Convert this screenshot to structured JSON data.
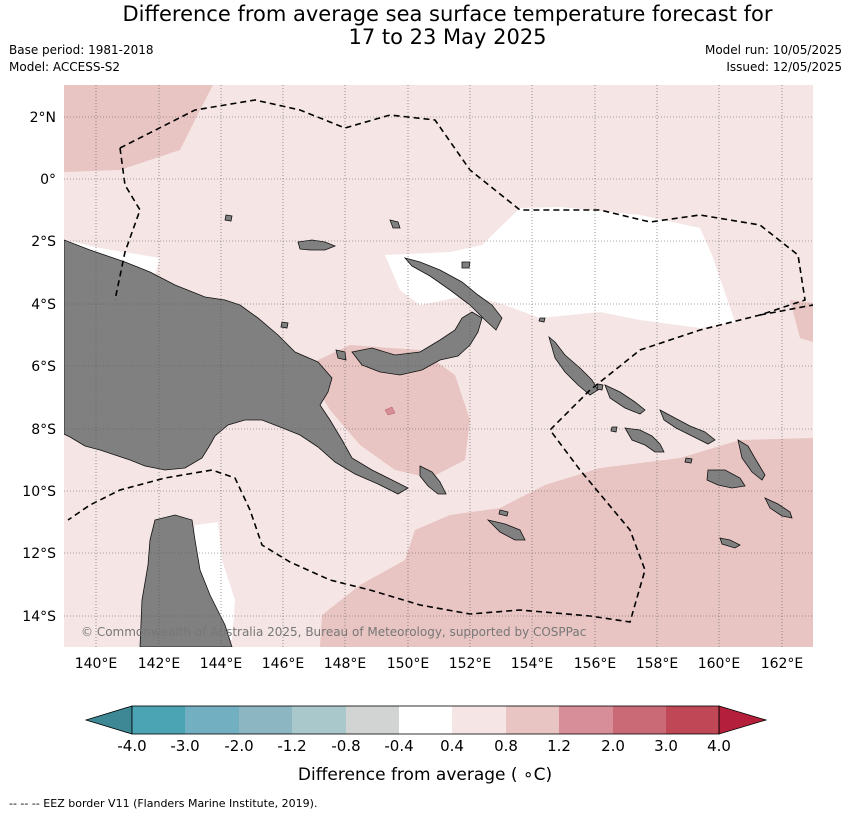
{
  "header": {
    "title_line1": "Difference from average sea surface temperature forecast for",
    "title_line2": "17 to 23 May 2025",
    "base_period": "Base period: 1981-2018",
    "model": "Model: ACCESS-S2",
    "model_run": "Model run: 10/05/2025",
    "issued": "Issued: 12/05/2025"
  },
  "map": {
    "lat_labels": [
      "2°N",
      "0°",
      "2°S",
      "4°S",
      "6°S",
      "8°S",
      "10°S",
      "12°S",
      "14°S"
    ],
    "lon_labels": [
      "140°E",
      "142°E",
      "144°E",
      "146°E",
      "148°E",
      "150°E",
      "152°E",
      "154°E",
      "156°E",
      "158°E",
      "160°E",
      "162°E"
    ],
    "copyright": "© Commonwealth of Australia 2025, Bureau of Meteorology, supported by COSPPac",
    "land_color": "#808080",
    "colors": {
      "c_0_4_0_8": "#f5e6e5",
      "c_0_8_1_2": "#e8c5c2"
    }
  },
  "colorbar": {
    "ticks": [
      "-4.0",
      "-3.0",
      "-2.0",
      "-1.2",
      "-0.8",
      "-0.4",
      "0.4",
      "0.8",
      "1.2",
      "2.0",
      "3.0",
      "4.0"
    ],
    "colors": [
      "#3e8896",
      "#4ba4b4",
      "#72afc0",
      "#8cb6c2",
      "#a9c8cc",
      "#d2d4d4",
      "#ffffff",
      "#f5e6e5",
      "#e8c5c2",
      "#d88e98",
      "#cb6a77",
      "#bf4756",
      "#b41f3c"
    ],
    "label": "Difference from average ( ∘C)"
  },
  "footnote": "--  --  -- EEZ border V11 (Flanders Marine Institute, 2019)."
}
